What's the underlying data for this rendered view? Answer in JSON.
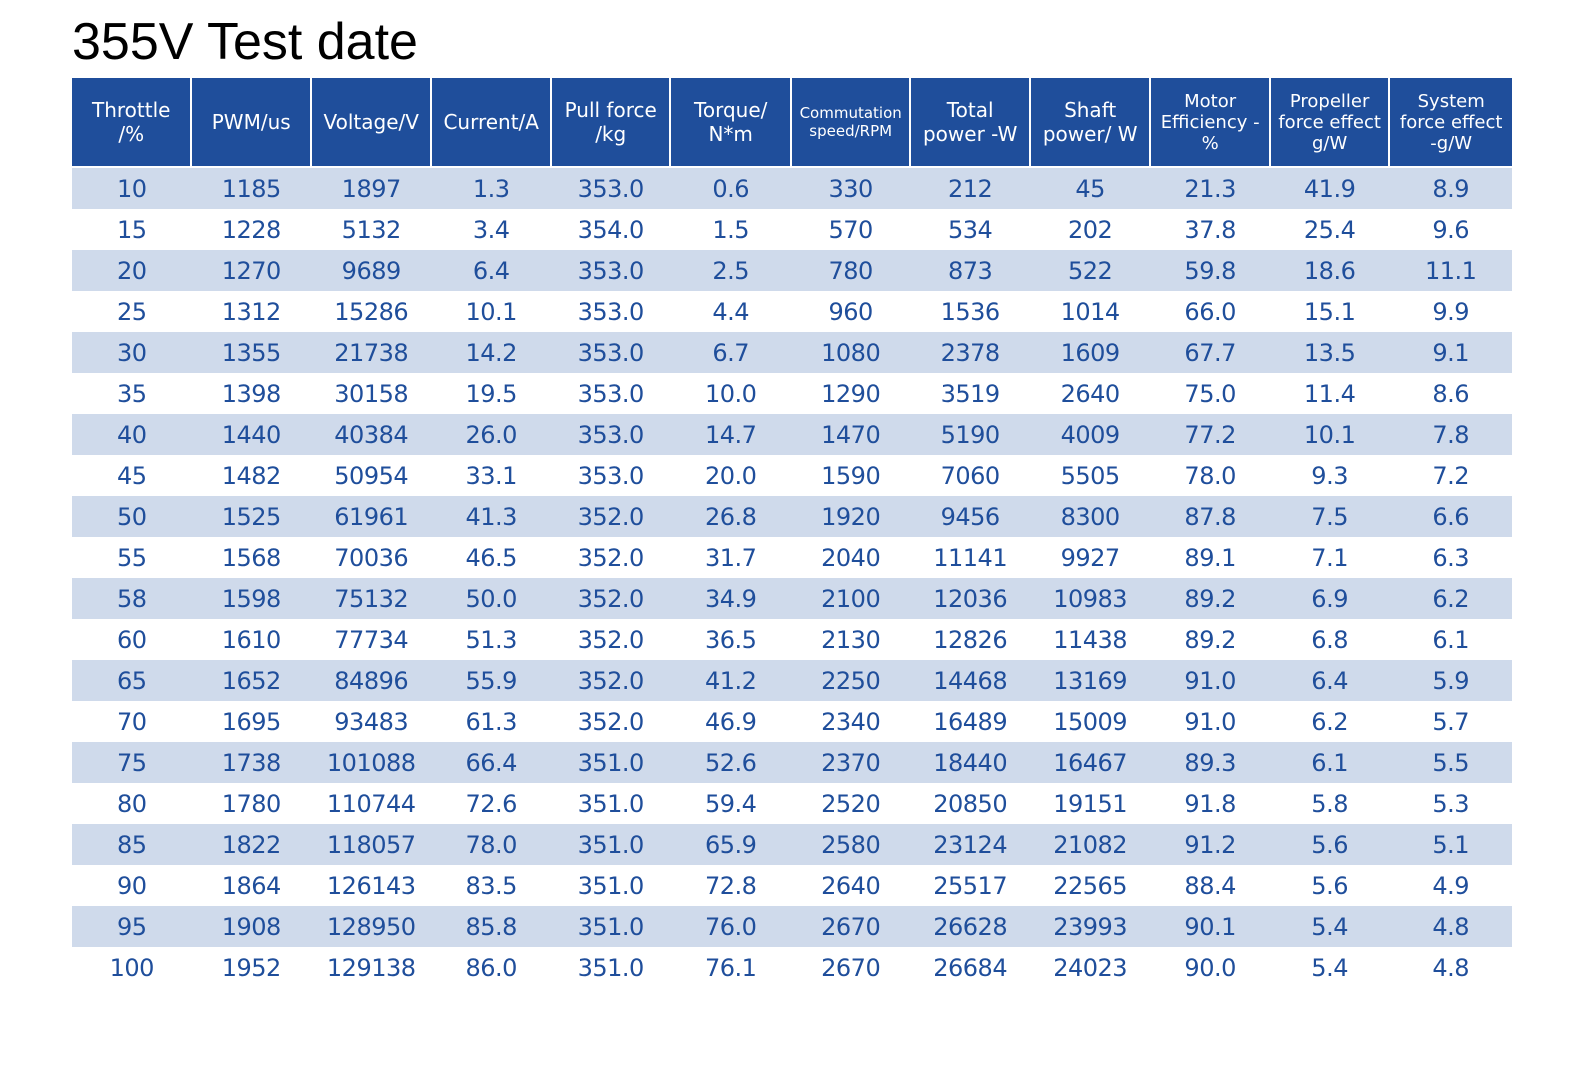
{
  "title": "355V Test date",
  "colors": {
    "header_bg": "#1f4e9b",
    "header_text": "#ffffff",
    "row_alt_bg": "#cfdaeb",
    "cell_text": "#1f4e9b"
  },
  "table": {
    "headers": [
      "Throttle\n/%",
      "PWM/us",
      "Voltage/V",
      "Current/A",
      "Pull force\n/kg",
      "Torque/\nN*m",
      "Commutation\nspeed/RPM",
      "Total\npower -W",
      "Shaft\npower/ W",
      "Motor\nEfficiency -%",
      "Propeller\nforce effect\ng/W",
      "System\nforce effect\n-g/W"
    ],
    "rows": [
      [
        "10",
        "1185",
        "1897",
        "1.3",
        "353.0",
        "0.6",
        "330",
        "212",
        "45",
        "21.3",
        "41.9",
        "8.9"
      ],
      [
        "15",
        "1228",
        "5132",
        "3.4",
        "354.0",
        "1.5",
        "570",
        "534",
        "202",
        "37.8",
        "25.4",
        "9.6"
      ],
      [
        "20",
        "1270",
        "9689",
        "6.4",
        "353.0",
        "2.5",
        "780",
        "873",
        "522",
        "59.8",
        "18.6",
        "11.1"
      ],
      [
        "25",
        "1312",
        "15286",
        "10.1",
        "353.0",
        "4.4",
        "960",
        "1536",
        "1014",
        "66.0",
        "15.1",
        "9.9"
      ],
      [
        "30",
        "1355",
        "21738",
        "14.2",
        "353.0",
        "6.7",
        "1080",
        "2378",
        "1609",
        "67.7",
        "13.5",
        "9.1"
      ],
      [
        "35",
        "1398",
        "30158",
        "19.5",
        "353.0",
        "10.0",
        "1290",
        "3519",
        "2640",
        "75.0",
        "11.4",
        "8.6"
      ],
      [
        "40",
        "1440",
        "40384",
        "26.0",
        "353.0",
        "14.7",
        "1470",
        "5190",
        "4009",
        "77.2",
        "10.1",
        "7.8"
      ],
      [
        "45",
        "1482",
        "50954",
        "33.1",
        "353.0",
        "20.0",
        "1590",
        "7060",
        "5505",
        "78.0",
        "9.3",
        "7.2"
      ],
      [
        "50",
        "1525",
        "61961",
        "41.3",
        "352.0",
        "26.8",
        "1920",
        "9456",
        "8300",
        "87.8",
        "7.5",
        "6.6"
      ],
      [
        "55",
        "1568",
        "70036",
        "46.5",
        "352.0",
        "31.7",
        "2040",
        "11141",
        "9927",
        "89.1",
        "7.1",
        "6.3"
      ],
      [
        "58",
        "1598",
        "75132",
        "50.0",
        "352.0",
        "34.9",
        "2100",
        "12036",
        "10983",
        "89.2",
        "6.9",
        "6.2"
      ],
      [
        "60",
        "1610",
        "77734",
        "51.3",
        "352.0",
        "36.5",
        "2130",
        "12826",
        "11438",
        "89.2",
        "6.8",
        "6.1"
      ],
      [
        "65",
        "1652",
        "84896",
        "55.9",
        "352.0",
        "41.2",
        "2250",
        "14468",
        "13169",
        "91.0",
        "6.4",
        "5.9"
      ],
      [
        "70",
        "1695",
        "93483",
        "61.3",
        "352.0",
        "46.9",
        "2340",
        "16489",
        "15009",
        "91.0",
        "6.2",
        "5.7"
      ],
      [
        "75",
        "1738",
        "101088",
        "66.4",
        "351.0",
        "52.6",
        "2370",
        "18440",
        "16467",
        "89.3",
        "6.1",
        "5.5"
      ],
      [
        "80",
        "1780",
        "110744",
        "72.6",
        "351.0",
        "59.4",
        "2520",
        "20850",
        "19151",
        "91.8",
        "5.8",
        "5.3"
      ],
      [
        "85",
        "1822",
        "118057",
        "78.0",
        "351.0",
        "65.9",
        "2580",
        "23124",
        "21082",
        "91.2",
        "5.6",
        "5.1"
      ],
      [
        "90",
        "1864",
        "126143",
        "83.5",
        "351.0",
        "72.8",
        "2640",
        "25517",
        "22565",
        "88.4",
        "5.6",
        "4.9"
      ],
      [
        "95",
        "1908",
        "128950",
        "85.8",
        "351.0",
        "76.0",
        "2670",
        "26628",
        "23993",
        "90.1",
        "5.4",
        "4.8"
      ],
      [
        "100",
        "1952",
        "129138",
        "86.0",
        "351.0",
        "76.1",
        "2670",
        "26684",
        "24023",
        "90.0",
        "5.4",
        "4.8"
      ]
    ]
  }
}
